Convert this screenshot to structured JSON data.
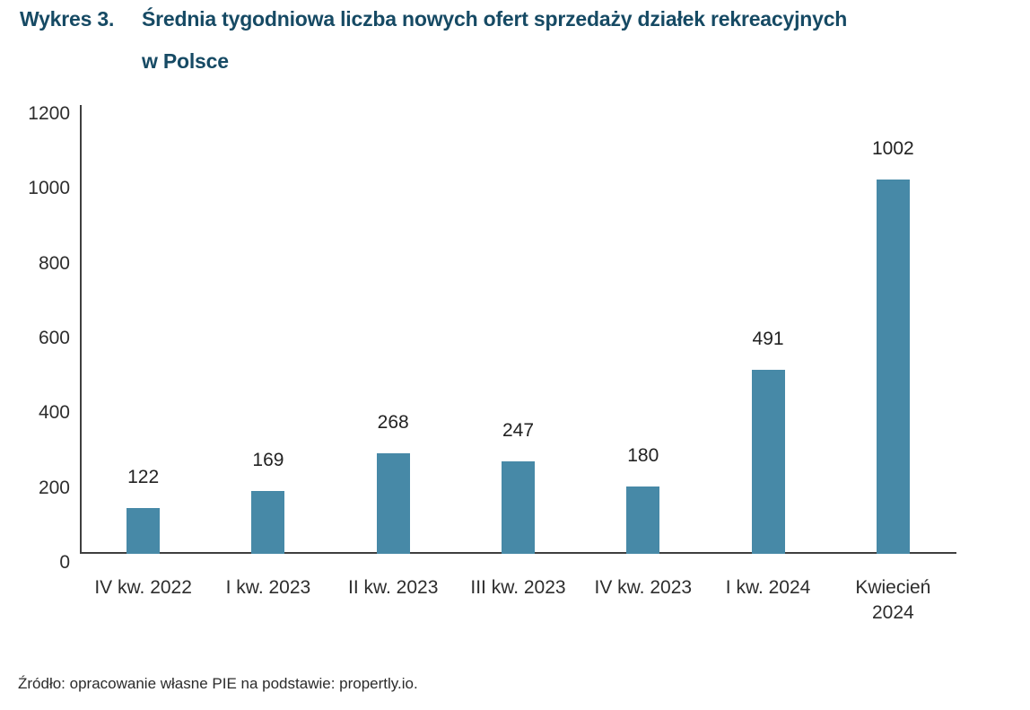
{
  "header": {
    "figure_label": "Wykres 3.",
    "title_line1": "Średnia tygodniowa liczba nowych ofert sprzedaży działek rekreacyjnych",
    "title_line2": "w Polsce",
    "title_color": "#164a64"
  },
  "chart_data": {
    "type": "bar",
    "title": "Średnia tygodniowa liczba nowych ofert sprzedaży działek rekreacyjnych w Polsce",
    "categories": [
      "IV kw. 2022",
      "I kw. 2023",
      "II kw. 2023",
      "III kw. 2023",
      "IV kw. 2023",
      "I kw. 2024",
      "Kwiecień\n2024"
    ],
    "values": [
      122,
      169,
      268,
      247,
      180,
      491,
      1002
    ],
    "data_labels_shown": true,
    "xlabel": "",
    "ylabel": "",
    "ylim": [
      0,
      1200
    ],
    "yticks": [
      0,
      200,
      400,
      600,
      800,
      1000,
      1200
    ],
    "grid": false,
    "legend": false,
    "bar_color": "#4789a7",
    "axis_color": "#3f3f3f",
    "tick_label_color": "#2d2d2d",
    "value_label_color": "#222222"
  },
  "footer": {
    "source": "Źródło: opracowanie własne PIE na podstawie: propertly.io."
  }
}
